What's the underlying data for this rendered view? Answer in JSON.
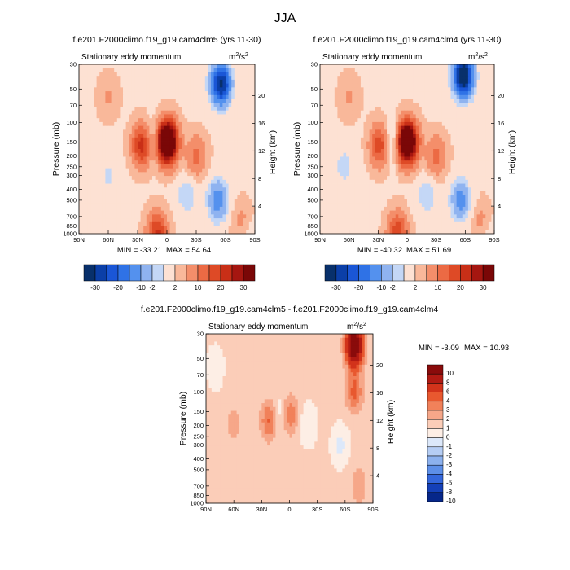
{
  "figure": {
    "season": "JJA",
    "units_base": "m",
    "units_sup_1": "2",
    "units_slash": "/s",
    "units_sup_2": "2"
  },
  "chart_data": [
    {
      "type": "heatmap",
      "title": "f.e201.F2000climo.f19_g19.cam4clm5 (yrs 11-30)",
      "subtitle": "Stationary eddy momentum",
      "xlabel": "",
      "ylabel": "Pressure (mb)",
      "y2label": "Height (km)",
      "x_ticks": [
        "90N",
        "60N",
        "30N",
        "0",
        "30S",
        "60S",
        "90S"
      ],
      "x_ticks_lat": [
        90,
        60,
        30,
        0,
        -30,
        -60,
        -90
      ],
      "y_ticks": [
        "30",
        "50",
        "70",
        "100",
        "150",
        "200",
        "250",
        "300",
        "400",
        "500",
        "700",
        "850",
        "1000"
      ],
      "y_ticks_mb": [
        30,
        50,
        70,
        100,
        150,
        200,
        250,
        300,
        400,
        500,
        700,
        850,
        1000
      ],
      "y2_ticks": [
        "20",
        "16",
        "12",
        "8",
        "4"
      ],
      "y2_ticks_km": [
        20,
        16,
        12,
        8,
        4
      ],
      "ylim_mb": [
        1000,
        30
      ],
      "min_text": "MIN = -33.21",
      "max_text": "MAX = 54.64",
      "min": -33.21,
      "max": 54.64,
      "colorbar_labels": [
        "-30",
        "-20",
        "-10",
        "-2",
        "2",
        "10",
        "20",
        "30"
      ],
      "features": [
        {
          "lat": 0,
          "p": 150,
          "value": 54.6
        },
        {
          "lat": 25,
          "p": 160,
          "value": 24
        },
        {
          "lat": 10,
          "p": 1000,
          "value": 20
        },
        {
          "lat": -30,
          "p": 200,
          "value": 10
        },
        {
          "lat": 15,
          "p": 150,
          "value": -10
        },
        {
          "lat": -55,
          "p": 45,
          "value": -33.2
        },
        {
          "lat": -52,
          "p": 500,
          "value": -15
        },
        {
          "lat": -20,
          "p": 450,
          "value": -6
        },
        {
          "lat": 60,
          "p": 300,
          "value": -4
        },
        {
          "lat": 60,
          "p": 60,
          "value": 4
        },
        {
          "lat": -78,
          "p": 850,
          "value": 12
        },
        {
          "lat": -80,
          "p": 950,
          "value": -10
        }
      ]
    },
    {
      "type": "heatmap",
      "title": "f.e201.F2000climo.f19_g19.cam4clm4 (yrs 11-30)",
      "subtitle": "Stationary eddy momentum",
      "xlabel": "",
      "ylabel": "Pressure (mb)",
      "y2label": "Height (km)",
      "x_ticks": [
        "90N",
        "60N",
        "30N",
        "0",
        "30S",
        "60S",
        "90S"
      ],
      "x_ticks_lat": [
        90,
        60,
        30,
        0,
        -30,
        -60,
        -90
      ],
      "y_ticks": [
        "30",
        "50",
        "70",
        "100",
        "150",
        "200",
        "250",
        "300",
        "400",
        "500",
        "700",
        "850",
        "1000"
      ],
      "y_ticks_mb": [
        30,
        50,
        70,
        100,
        150,
        200,
        250,
        300,
        400,
        500,
        700,
        850,
        1000
      ],
      "y2_ticks": [
        "20",
        "16",
        "12",
        "8",
        "4"
      ],
      "y2_ticks_km": [
        20,
        16,
        12,
        8,
        4
      ],
      "ylim_mb": [
        1000,
        30
      ],
      "min_text": "MIN = -40.32",
      "max_text": "MAX = 51.69",
      "min": -40.32,
      "max": 51.69,
      "colorbar_labels": [
        "-30",
        "-20",
        "-10",
        "-2",
        "2",
        "10",
        "20",
        "30"
      ],
      "features": [
        {
          "lat": 0,
          "p": 150,
          "value": 51.7
        },
        {
          "lat": 28,
          "p": 160,
          "value": 18
        },
        {
          "lat": 10,
          "p": 1000,
          "value": 18
        },
        {
          "lat": -30,
          "p": 200,
          "value": 10
        },
        {
          "lat": 15,
          "p": 150,
          "value": -10
        },
        {
          "lat": -58,
          "p": 38,
          "value": -40.3
        },
        {
          "lat": -55,
          "p": 500,
          "value": -14
        },
        {
          "lat": -20,
          "p": 450,
          "value": -6
        },
        {
          "lat": 65,
          "p": 250,
          "value": -5
        },
        {
          "lat": 60,
          "p": 60,
          "value": 4
        },
        {
          "lat": -78,
          "p": 850,
          "value": 12
        },
        {
          "lat": -80,
          "p": 950,
          "value": -10
        }
      ]
    },
    {
      "type": "heatmap",
      "title": "f.e201.F2000climo.f19_g19.cam4clm5 - f.e201.F2000climo.f19_g19.cam4clm4",
      "subtitle": "Stationary eddy momentum",
      "xlabel": "",
      "ylabel": "Pressure (mb)",
      "y2label": "Height (km)",
      "x_ticks": [
        "90N",
        "60N",
        "30N",
        "0",
        "30S",
        "60S",
        "90S"
      ],
      "x_ticks_lat": [
        90,
        60,
        30,
        0,
        -30,
        -60,
        -90
      ],
      "y_ticks": [
        "30",
        "50",
        "70",
        "100",
        "150",
        "200",
        "250",
        "300",
        "400",
        "500",
        "700",
        "850",
        "1000"
      ],
      "y_ticks_mb": [
        30,
        50,
        70,
        100,
        150,
        200,
        250,
        300,
        400,
        500,
        700,
        850,
        1000
      ],
      "y2_ticks": [
        "20",
        "16",
        "12",
        "8",
        "4"
      ],
      "y2_ticks_km": [
        20,
        16,
        12,
        8,
        4
      ],
      "ylim_mb": [
        1000,
        30
      ],
      "min_text": "MIN =  -3.09",
      "max_text": "MAX =  10.93",
      "min": -3.09,
      "max": 10.93,
      "colorbar_labels": [
        "10",
        "8",
        "6",
        "4",
        "3",
        "2",
        "1",
        "0",
        "-1",
        "-2",
        "-3",
        "-4",
        "-6",
        "-8",
        "-10"
      ],
      "features": [
        {
          "lat": -70,
          "p": 38,
          "value": 10.9
        },
        {
          "lat": -70,
          "p": 100,
          "value": 3
        },
        {
          "lat": 22,
          "p": 180,
          "value": 3
        },
        {
          "lat": 0,
          "p": 160,
          "value": 2.8
        },
        {
          "lat": 60,
          "p": 200,
          "value": 1.2
        },
        {
          "lat": 10,
          "p": 160,
          "value": -1.5
        },
        {
          "lat": -20,
          "p": 200,
          "value": -1.2
        },
        {
          "lat": -55,
          "p": 300,
          "value": -1.5
        },
        {
          "lat": 80,
          "p": 60,
          "value": -1
        },
        {
          "lat": 60,
          "p": 600,
          "value": 0.6
        },
        {
          "lat": -75,
          "p": 700,
          "value": 1.5
        }
      ]
    }
  ]
}
